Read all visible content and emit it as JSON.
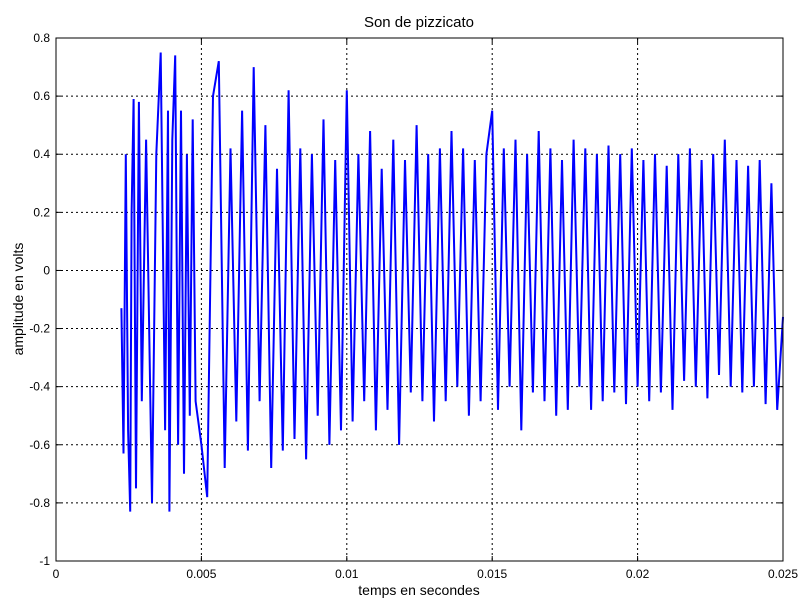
{
  "chart_data": {
    "type": "line",
    "title": "Son de pizzicato",
    "xlabel": "temps en secondes",
    "ylabel": "amplitude en volts",
    "xlim": [
      0,
      0.025
    ],
    "ylim": [
      -1,
      0.8
    ],
    "xticks": [
      "0",
      "0.005",
      "0.01",
      "0.015",
      "0.02",
      "0.025"
    ],
    "yticks": [
      "0.8",
      "0.6",
      "0.4",
      "0.2",
      "0",
      "-0.2",
      "-0.4",
      "-0.6",
      "-0.8",
      "-1"
    ],
    "grid": true,
    "line_color": "#0000ff",
    "series": [
      {
        "x": [
          0.00225,
          0.00232,
          0.0024,
          0.00248,
          0.00255,
          0.0026,
          0.00267,
          0.00275,
          0.00285,
          0.00295,
          0.0031,
          0.0033,
          0.00345,
          0.0036,
          0.00375,
          0.00385,
          0.0039,
          0.004,
          0.0041,
          0.0042,
          0.0043,
          0.0044,
          0.0045,
          0.0046,
          0.0047,
          0.0048,
          0.005,
          0.0052,
          0.0054,
          0.0056,
          0.0058,
          0.006,
          0.0062,
          0.0064,
          0.0066,
          0.0068,
          0.007,
          0.0072,
          0.0074,
          0.0076,
          0.0078,
          0.008,
          0.0082,
          0.0084,
          0.0086,
          0.0088,
          0.009,
          0.0092,
          0.0094,
          0.0096,
          0.0098,
          0.01,
          0.0102,
          0.0104,
          0.0106,
          0.0108,
          0.011,
          0.0112,
          0.0114,
          0.0116,
          0.0118,
          0.012,
          0.0122,
          0.0124,
          0.0126,
          0.0128,
          0.013,
          0.0132,
          0.0134,
          0.0136,
          0.0138,
          0.014,
          0.0142,
          0.0144,
          0.0146,
          0.0148,
          0.015,
          0.0152,
          0.0154,
          0.0156,
          0.0158,
          0.016,
          0.0162,
          0.0164,
          0.0166,
          0.0168,
          0.017,
          0.0172,
          0.0174,
          0.0176,
          0.0178,
          0.018,
          0.0182,
          0.0184,
          0.0186,
          0.0188,
          0.019,
          0.0192,
          0.0194,
          0.0196,
          0.0198,
          0.02,
          0.0202,
          0.0204,
          0.0206,
          0.0208,
          0.021,
          0.0212,
          0.0214,
          0.0216,
          0.0218,
          0.022,
          0.0222,
          0.0224,
          0.0226,
          0.0228,
          0.023,
          0.0232,
          0.0234,
          0.0236,
          0.0238,
          0.024,
          0.0242,
          0.0244,
          0.0246,
          0.0248,
          0.025
        ],
        "y": [
          -0.13,
          -0.63,
          0.4,
          -0.55,
          -0.83,
          0.2,
          0.59,
          -0.75,
          0.58,
          -0.45,
          0.45,
          -0.8,
          0.4,
          0.75,
          -0.55,
          0.55,
          -0.83,
          0.45,
          0.74,
          -0.6,
          0.55,
          -0.7,
          0.4,
          -0.5,
          0.52,
          -0.45,
          -0.6,
          -0.78,
          0.6,
          0.72,
          -0.68,
          0.42,
          -0.52,
          0.55,
          -0.62,
          0.7,
          -0.45,
          0.5,
          -0.68,
          0.35,
          -0.62,
          0.62,
          -0.58,
          0.42,
          -0.65,
          0.4,
          -0.5,
          0.52,
          -0.6,
          0.38,
          -0.55,
          0.62,
          -0.52,
          0.4,
          -0.45,
          0.48,
          -0.55,
          0.35,
          -0.48,
          0.45,
          -0.6,
          0.38,
          -0.42,
          0.5,
          -0.45,
          0.4,
          -0.52,
          0.42,
          -0.45,
          0.48,
          -0.4,
          0.42,
          -0.5,
          0.38,
          -0.45,
          0.4,
          0.55,
          -0.48,
          0.42,
          -0.4,
          0.45,
          -0.55,
          0.4,
          -0.42,
          0.48,
          -0.45,
          0.42,
          -0.5,
          0.38,
          -0.48,
          0.45,
          -0.4,
          0.42,
          -0.48,
          0.4,
          -0.45,
          0.43,
          -0.42,
          0.4,
          -0.46,
          0.42,
          -0.4,
          0.38,
          -0.45,
          0.4,
          -0.42,
          0.36,
          -0.48,
          0.4,
          -0.38,
          0.42,
          -0.4,
          0.38,
          -0.44,
          0.4,
          -0.36,
          0.45,
          -0.4,
          0.38,
          -0.42,
          0.36,
          -0.4,
          0.38,
          -0.46,
          0.3,
          -0.48,
          -0.16
        ]
      }
    ]
  }
}
